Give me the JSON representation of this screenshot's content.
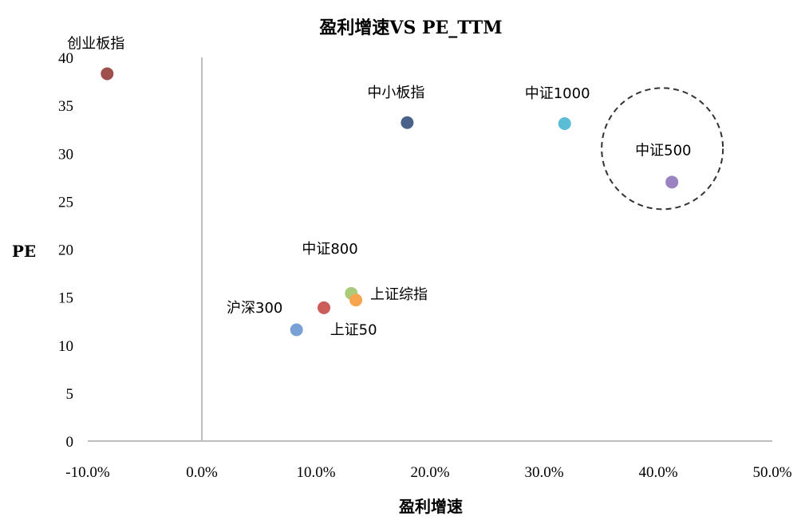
{
  "chart_data": {
    "type": "scatter",
    "title": "盈利增速VS PE_TTM",
    "xlabel": "盈利增速",
    "ylabel": "PE",
    "xlim": [
      -0.1,
      0.5
    ],
    "ylim": [
      0,
      40
    ],
    "x_ticks": [
      -0.1,
      0.0,
      0.1,
      0.2,
      0.3,
      0.4,
      0.5
    ],
    "x_tick_labels": [
      "-10.0%",
      "0.0%",
      "10.0%",
      "20.0%",
      "30.0%",
      "40.0%",
      "50.0%"
    ],
    "y_ticks": [
      0,
      5,
      10,
      15,
      20,
      25,
      30,
      35,
      40
    ],
    "y_tick_labels": [
      "0",
      "5",
      "10",
      "15",
      "20",
      "25",
      "30",
      "35",
      "40"
    ],
    "grid": false,
    "points": [
      {
        "label": "创业板指",
        "x": -0.083,
        "y": 38.3,
        "color": "#a0504c"
      },
      {
        "label": "中小板指",
        "x": 0.18,
        "y": 33.2,
        "color": "#4a6289"
      },
      {
        "label": "中证1000",
        "x": 0.318,
        "y": 33.1,
        "color": "#5bbcd6"
      },
      {
        "label": "中证500",
        "x": 0.412,
        "y": 27.0,
        "color": "#9b82c1"
      },
      {
        "label": "中证800",
        "x": 0.131,
        "y": 15.4,
        "color": "#a9cc7b"
      },
      {
        "label": "上证综指",
        "x": 0.135,
        "y": 14.7,
        "color": "#f6a44d"
      },
      {
        "label": "沪深300",
        "x": 0.107,
        "y": 13.9,
        "color": "#cc5c5a"
      },
      {
        "label": "上证50",
        "x": 0.083,
        "y": 11.6,
        "color": "#7aa1d6"
      }
    ],
    "annotations": [
      {
        "type": "dashed-circle",
        "around": "中证500"
      }
    ]
  }
}
